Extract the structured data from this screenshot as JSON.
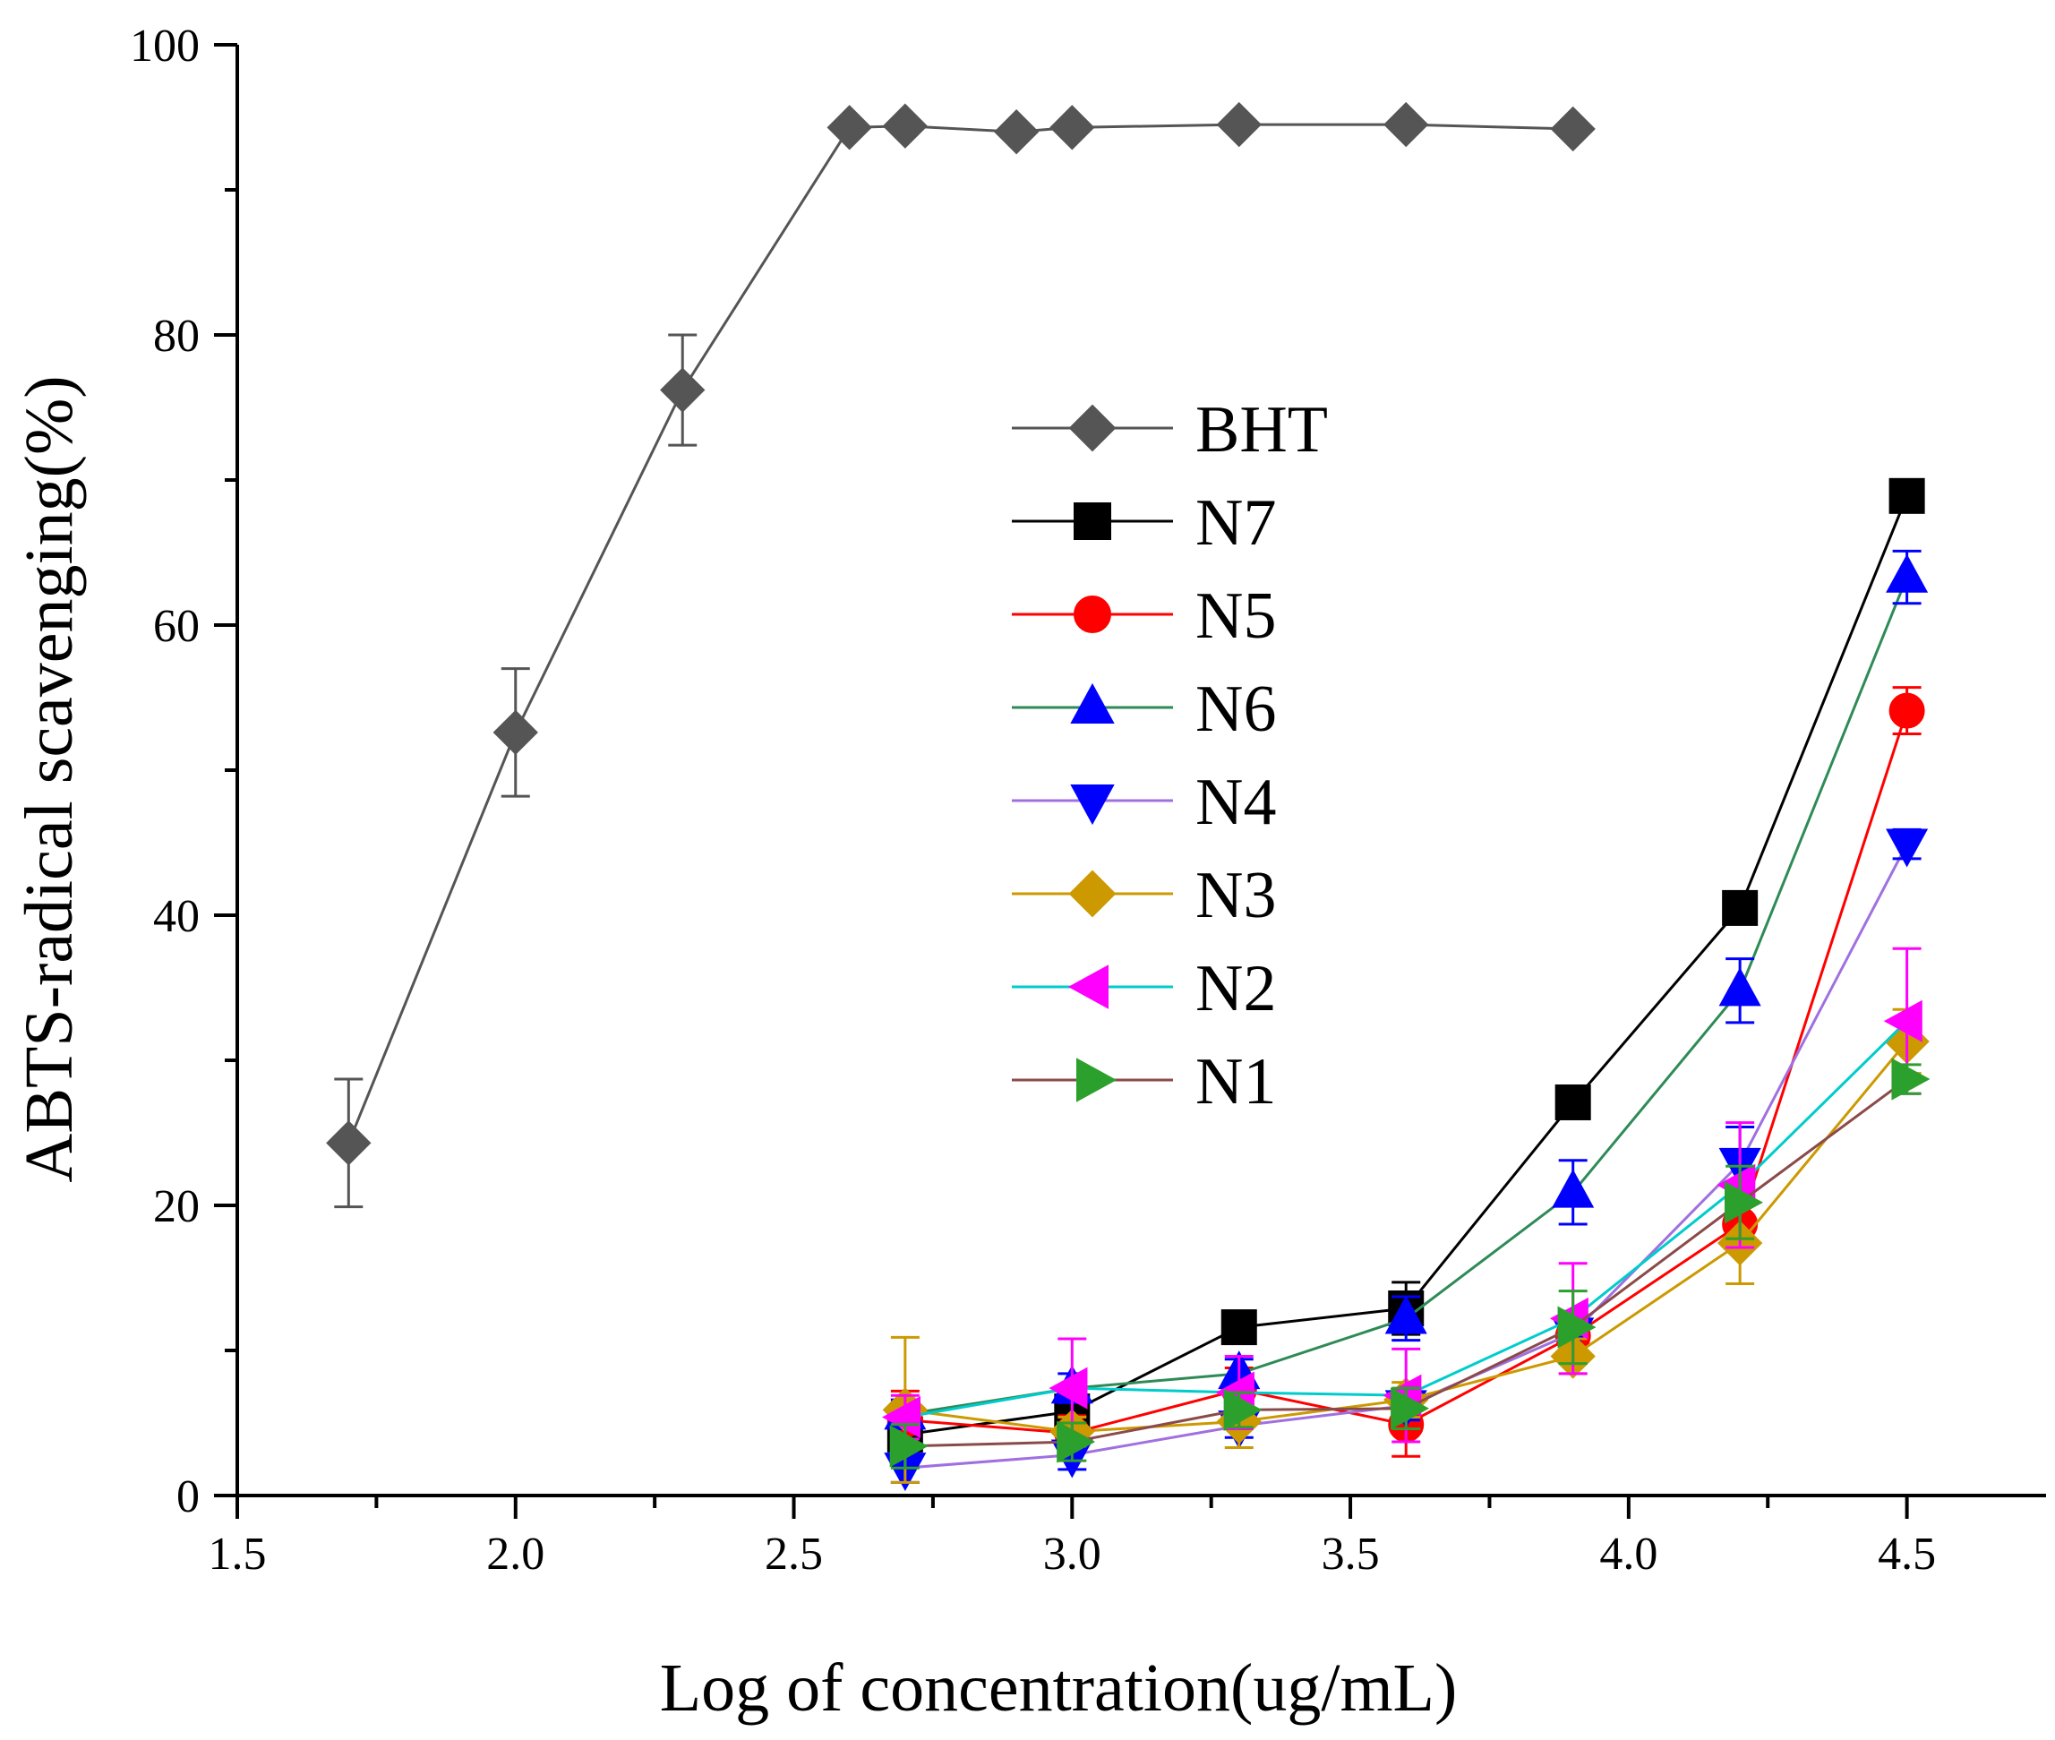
{
  "chart_data": {
    "type": "line",
    "title": "",
    "xlabel": "Log of concentration(ug/mL)",
    "ylabel": "ABTS-radical scavenging(%)",
    "xlim": [
      1.5,
      4.75
    ],
    "ylim": [
      0,
      100
    ],
    "x_ticks": [
      "1.5",
      "2.0",
      "2.5",
      "3.0",
      "3.5",
      "4.0",
      "4.5"
    ],
    "y_ticks": [
      "0",
      "20",
      "40",
      "60",
      "80",
      "100"
    ],
    "legend_position": "center",
    "series": [
      {
        "name": "BHT",
        "color": "#555555",
        "marker": "diamond",
        "x": [
          1.7,
          2.0,
          2.3,
          2.6,
          2.7,
          2.9,
          3.0,
          3.3,
          3.6,
          3.9
        ],
        "values": [
          24.3,
          52.6,
          76.2,
          94.3,
          94.4,
          94.0,
          94.3,
          94.5,
          94.5,
          94.2
        ],
        "errors": [
          4.4,
          4.4,
          3.8,
          0,
          0,
          0,
          0,
          0,
          0,
          0
        ]
      },
      {
        "name": "N7",
        "color": "#000000",
        "marker": "square",
        "x": [
          2.7,
          3.0,
          3.3,
          3.6,
          3.9,
          4.2,
          4.5
        ],
        "values": [
          4.2,
          5.8,
          11.6,
          12.9,
          27.1,
          40.5,
          68.9
        ],
        "errors": [
          0.5,
          0.8,
          0.6,
          1.8,
          1.0,
          0.6,
          0.5
        ]
      },
      {
        "name": "N5",
        "color": "#ff0000",
        "marker": "circle",
        "x": [
          2.7,
          3.0,
          3.3,
          3.6,
          3.9,
          4.2,
          4.5
        ],
        "values": [
          5.2,
          4.3,
          7.3,
          4.9,
          11.0,
          18.7,
          54.1
        ],
        "errors": [
          2.0,
          1.2,
          1.5,
          2.2,
          1.5,
          1.5,
          1.6
        ]
      },
      {
        "name": "N6",
        "color": "#2e8b57",
        "marker": "triangle-up",
        "x": [
          2.7,
          3.0,
          3.3,
          3.6,
          3.9,
          4.2,
          4.5
        ],
        "values": [
          5.6,
          7.4,
          8.4,
          12.2,
          20.9,
          34.8,
          63.3
        ],
        "errors": [
          1.0,
          1.0,
          1.0,
          1.5,
          2.2,
          2.2,
          1.8
        ]
      },
      {
        "name": "N4",
        "color": "#a070e0",
        "marker": "triangle-down",
        "x": [
          2.7,
          3.0,
          3.3,
          3.6,
          3.9,
          4.2,
          4.5
        ],
        "values": [
          1.9,
          2.8,
          4.8,
          6.2,
          11.2,
          22.9,
          44.9
        ],
        "errors": [
          1.0,
          1.0,
          0.8,
          1.0,
          1.5,
          2.5,
          1.0
        ]
      },
      {
        "name": "N3",
        "color": "#cc9900",
        "marker": "diamond",
        "x": [
          2.7,
          3.0,
          3.3,
          3.6,
          3.9,
          4.2,
          4.5
        ],
        "values": [
          5.9,
          4.4,
          5.1,
          6.6,
          9.6,
          17.4,
          31.3
        ],
        "errors": [
          5.0,
          1.0,
          1.8,
          1.2,
          1.2,
          2.8,
          2.2
        ]
      },
      {
        "name": "N2",
        "color": "#00cccc",
        "marker": "triangle-left",
        "x": [
          2.7,
          3.0,
          3.3,
          3.6,
          3.9,
          4.2,
          4.5
        ],
        "values": [
          5.4,
          7.4,
          7.1,
          6.9,
          12.2,
          21.4,
          32.7
        ],
        "errors": [
          1.5,
          3.4,
          2.5,
          3.2,
          3.8,
          4.3,
          5.0
        ]
      },
      {
        "name": "N1",
        "color": "#8b4a4a",
        "marker": "triangle-right",
        "x": [
          2.7,
          3.0,
          3.3,
          3.6,
          3.9,
          4.2,
          4.5
        ],
        "values": [
          3.4,
          3.7,
          5.9,
          6.0,
          11.6,
          20.2,
          28.7
        ],
        "errors": [
          1.5,
          1.3,
          1.2,
          1.4,
          2.5,
          2.5,
          1.0
        ]
      }
    ]
  }
}
